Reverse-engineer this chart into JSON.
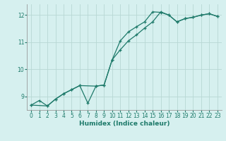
{
  "xlabel": "Humidex (Indice chaleur)",
  "background_color": "#d6f0ef",
  "grid_color": "#b8d8d4",
  "line_color": "#1e7a6a",
  "xlim": [
    -0.5,
    23.5
  ],
  "ylim": [
    8.5,
    12.4
  ],
  "yticks": [
    9,
    10,
    11,
    12
  ],
  "xticks": [
    0,
    1,
    2,
    3,
    4,
    5,
    6,
    7,
    8,
    9,
    10,
    11,
    12,
    13,
    14,
    15,
    16,
    17,
    18,
    19,
    20,
    21,
    22,
    23
  ],
  "line1_x": [
    0,
    1,
    2,
    3,
    4,
    5,
    6,
    7,
    8,
    9,
    10,
    11,
    12,
    13,
    14,
    15,
    16,
    17,
    18,
    19,
    20,
    21,
    22,
    23
  ],
  "line1_y": [
    8.68,
    8.85,
    8.65,
    8.9,
    9.1,
    9.25,
    9.4,
    8.75,
    9.38,
    9.42,
    10.35,
    11.05,
    11.38,
    11.57,
    11.75,
    12.12,
    12.1,
    12.0,
    11.75,
    11.87,
    11.92,
    12.0,
    12.05,
    11.95
  ],
  "line2_x": [
    0,
    2,
    3,
    4,
    5,
    6,
    8,
    9,
    10,
    11,
    12,
    13,
    14,
    15,
    16,
    17,
    18,
    19,
    20,
    21,
    22,
    23
  ],
  "line2_y": [
    8.68,
    8.65,
    8.9,
    9.1,
    9.25,
    9.4,
    9.38,
    9.42,
    10.35,
    10.72,
    11.05,
    11.27,
    11.52,
    11.75,
    12.12,
    12.0,
    11.75,
    11.87,
    11.92,
    12.0,
    12.05,
    11.95
  ]
}
